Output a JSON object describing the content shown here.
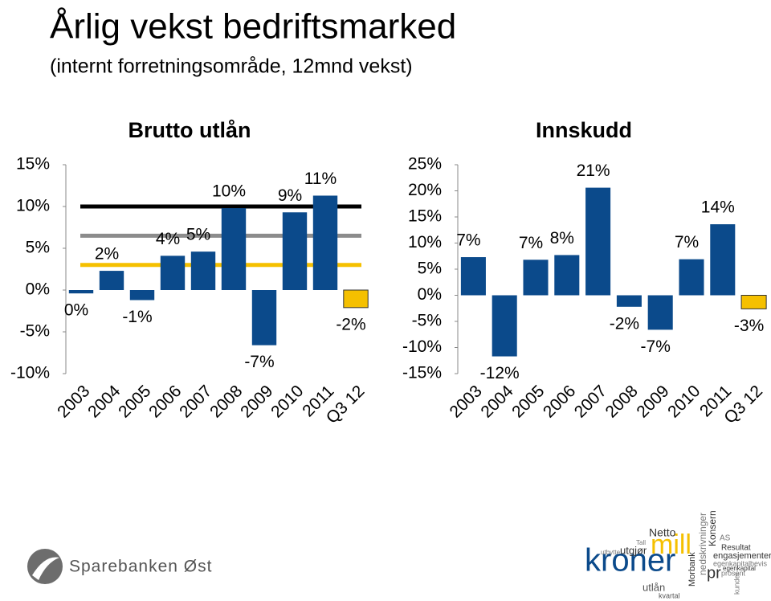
{
  "slide": {
    "title": "Årlig vekst bedriftsmarked",
    "subtitle": "(internt forretningsområde, 12mnd vekst)",
    "logo_text": "Sparebanken Øst",
    "word_cloud": [
      "Netto",
      "mill",
      "kroner",
      "utlån",
      "kvartal",
      "utgjør",
      "Tall",
      "utbytte",
      "Morbank",
      "nedskrivninger",
      "Konsern",
      "AS",
      "Resultat",
      "engasjementer",
      "egenkapitalbevis",
      "egenkapital",
      "prosent",
      "pr",
      "kunder"
    ]
  },
  "chart_data": [
    {
      "type": "bar",
      "title": "Brutto utlån",
      "categories": [
        "2003",
        "2004",
        "2005",
        "2006",
        "2007",
        "2008",
        "2009",
        "2010",
        "2011",
        "Q3 12"
      ],
      "values": [
        -0.4,
        2.3,
        -1.2,
        4.1,
        4.6,
        9.8,
        -6.6,
        9.3,
        11.3,
        -2.1
      ],
      "value_labels": [
        "0%",
        "2%",
        "-1%",
        "4%",
        "5%",
        "10%",
        "-7%",
        "9%",
        "11%",
        "-2%"
      ],
      "colors": [
        "#0b4a8b",
        "#0b4a8b",
        "#0b4a8b",
        "#0b4a8b",
        "#0b4a8b",
        "#0b4a8b",
        "#0b4a8b",
        "#0b4a8b",
        "#0b4a8b",
        "#f5c000"
      ],
      "reference_lines": [
        {
          "value": 10,
          "color": "#000000"
        },
        {
          "value": 6.5,
          "color": "#8c8c8c"
        },
        {
          "value": 3,
          "color": "#f5c000"
        }
      ],
      "ylim": [
        -10,
        15
      ],
      "yticks": [
        {
          "value": -10,
          "label": "-10%"
        },
        {
          "value": -5,
          "label": "-5%"
        },
        {
          "value": 0,
          "label": "0%"
        },
        {
          "value": 5,
          "label": "5%"
        },
        {
          "value": 10,
          "label": "10%"
        },
        {
          "value": 15,
          "label": "15%"
        }
      ]
    },
    {
      "type": "bar",
      "title": "Innskudd",
      "categories": [
        "2003",
        "2004",
        "2005",
        "2006",
        "2007",
        "2008",
        "2009",
        "2010",
        "2011",
        "Q3 12"
      ],
      "values": [
        7.3,
        -11.7,
        6.8,
        7.7,
        20.6,
        -2.2,
        -6.6,
        6.9,
        13.6,
        -2.6
      ],
      "value_labels": [
        "7%",
        "-12%",
        "7%",
        "8%",
        "21%",
        "-2%",
        "-7%",
        "7%",
        "14%",
        "-3%"
      ],
      "colors": [
        "#0b4a8b",
        "#0b4a8b",
        "#0b4a8b",
        "#0b4a8b",
        "#0b4a8b",
        "#0b4a8b",
        "#0b4a8b",
        "#0b4a8b",
        "#0b4a8b",
        "#f5c000"
      ],
      "ylim": [
        -15,
        25
      ],
      "yticks": [
        {
          "value": -15,
          "label": "-15%"
        },
        {
          "value": -10,
          "label": "-10%"
        },
        {
          "value": -5,
          "label": "-5%"
        },
        {
          "value": 0,
          "label": "0%"
        },
        {
          "value": 5,
          "label": "5%"
        },
        {
          "value": 10,
          "label": "10%"
        },
        {
          "value": 15,
          "label": "15%"
        },
        {
          "value": 20,
          "label": "20%"
        },
        {
          "value": 25,
          "label": "25%"
        }
      ]
    }
  ]
}
